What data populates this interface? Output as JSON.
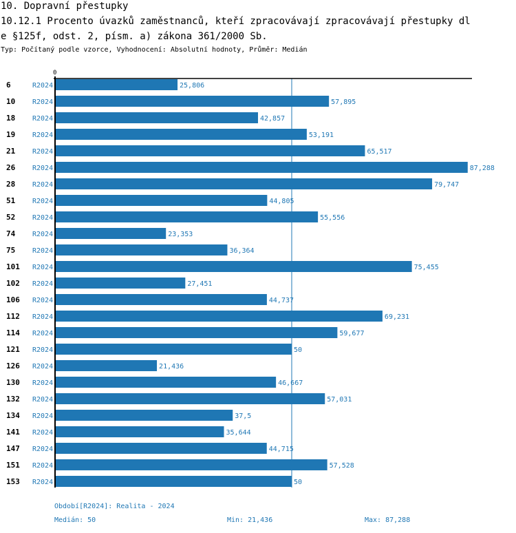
{
  "header": {
    "section": "10. Dopravní přestupky",
    "title_line1": "10.12.1 Procento úvazků zaměstnanců, kteří zpracovávají zpracovávají přestupky dl",
    "title_line2": "e §125f, odst. 2, písm. a) zákona 361/2000 Sb.",
    "subtitle": "Typ: Počítaný podle vzorce, Vyhodnocení: Absolutní hodnoty, Průměr: Medián"
  },
  "colors": {
    "bar": "#1f77b4",
    "axis": "#000000",
    "median_line": "#1f77b4",
    "label_text": "#1f77b4",
    "category_text": "#000000"
  },
  "chart_data": {
    "type": "bar",
    "orientation": "horizontal",
    "title": "10.12.1 Procento úvazků zaměstnanců, kteří zpracovávají zpracovávají přestupky dle §125f, odst. 2, písm. a) zákona 361/2000 Sb.",
    "xlabel": "",
    "ylabel": "",
    "axis_tick_label": "0",
    "xlim": [
      0,
      87.288
    ],
    "median": 50,
    "series_label": "R2024",
    "categories": [
      "6",
      "10",
      "18",
      "19",
      "21",
      "26",
      "28",
      "51",
      "52",
      "74",
      "75",
      "101",
      "102",
      "106",
      "112",
      "114",
      "121",
      "126",
      "130",
      "132",
      "134",
      "141",
      "147",
      "151",
      "153"
    ],
    "values": [
      25.806,
      57.895,
      42.857,
      53.191,
      65.517,
      87.288,
      79.747,
      44.805,
      55.556,
      23.353,
      36.364,
      75.455,
      27.451,
      44.737,
      69.231,
      59.677,
      50,
      21.436,
      46.667,
      57.031,
      37.5,
      35.644,
      44.715,
      57.528,
      50
    ],
    "value_labels": [
      "25,806",
      "57,895",
      "42,857",
      "53,191",
      "65,517",
      "87,288",
      "79,747",
      "44,805",
      "55,556",
      "23,353",
      "36,364",
      "75,455",
      "27,451",
      "44,737",
      "69,231",
      "59,677",
      "50",
      "21,436",
      "46,667",
      "57,031",
      "37,5",
      "35,644",
      "44,715",
      "57,528",
      "50"
    ],
    "grid": false,
    "legend": "none"
  },
  "footer": {
    "period": "Období[R2024]: Realita - 2024",
    "median": "Medián: 50",
    "min": "Min: 21,436",
    "max": "Max: 87,288"
  }
}
